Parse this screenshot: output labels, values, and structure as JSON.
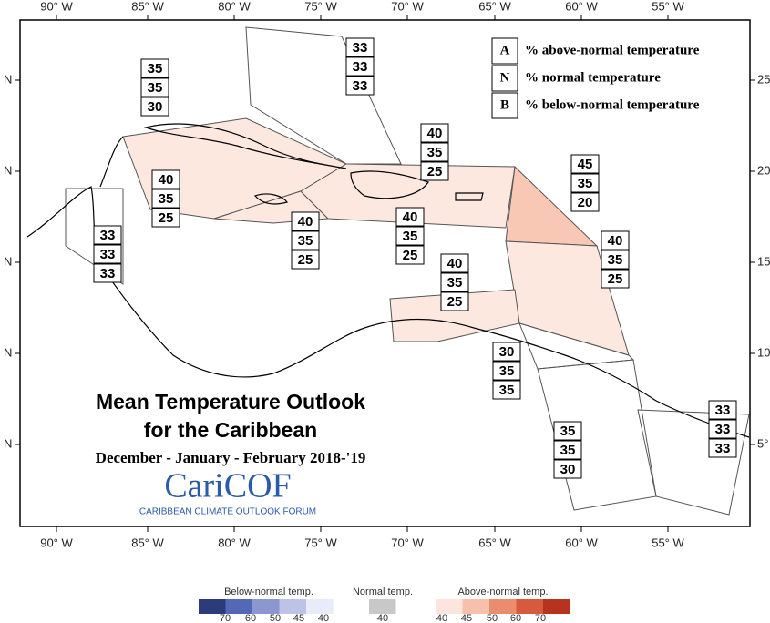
{
  "axes": {
    "x_labels": [
      "90° W",
      "85° W",
      "80° W",
      "75° W",
      "70° W",
      "65° W",
      "60° W",
      "55° W"
    ],
    "left_labels": [
      "N",
      "N",
      "N",
      "N",
      "N"
    ],
    "right_labels": [
      "25",
      "20",
      "15",
      "10",
      "5°"
    ]
  },
  "legend": [
    {
      "key": "A",
      "label": "% above-normal temperature"
    },
    {
      "key": "N",
      "label": "% normal temperature"
    },
    {
      "key": "B",
      "label": "% below-normal temperature"
    }
  ],
  "title": {
    "line1": "Mean Temperature Outlook",
    "line2": "for the Caribbean",
    "period": "December - January - February 2018-'19"
  },
  "logo": {
    "name": "CariCOF",
    "tagline": "CARIBBEAN CLIMATE OUTLOOK FORUM"
  },
  "regions": [
    {
      "values": [
        35,
        35,
        30
      ]
    },
    {
      "values": [
        33,
        33,
        33
      ]
    },
    {
      "values": [
        40,
        35,
        25
      ]
    },
    {
      "values": [
        45,
        35,
        20
      ]
    },
    {
      "values": [
        40,
        35,
        25
      ]
    },
    {
      "values": [
        40,
        35,
        25
      ]
    },
    {
      "values": [
        40,
        35,
        25
      ]
    },
    {
      "values": [
        33,
        33,
        33
      ]
    },
    {
      "values": [
        40,
        35,
        25
      ]
    },
    {
      "values": [
        40,
        35,
        25
      ]
    },
    {
      "values": [
        30,
        35,
        35
      ]
    },
    {
      "values": [
        35,
        35,
        30
      ]
    },
    {
      "values": [
        33,
        33,
        33
      ]
    }
  ],
  "colorbar": {
    "below": {
      "label": "Below-normal temp.",
      "ticks": [
        70,
        60,
        50,
        45,
        40
      ]
    },
    "normal": {
      "label": "Normal temp.",
      "ticks": [
        40
      ]
    },
    "above": {
      "label": "Above-normal temp.",
      "ticks": [
        40,
        45,
        50,
        60,
        70
      ]
    }
  }
}
